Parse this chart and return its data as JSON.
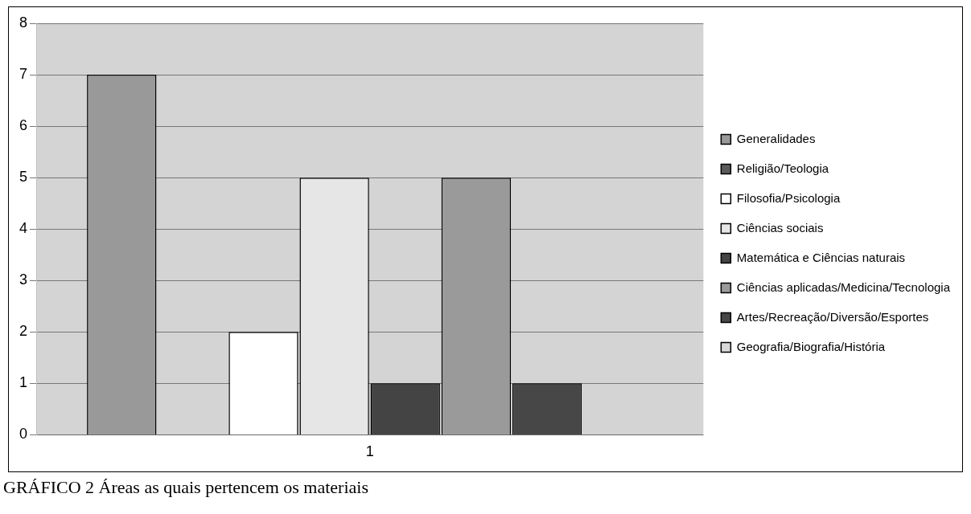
{
  "chart_data": {
    "type": "bar",
    "categories": [
      "1"
    ],
    "series": [
      {
        "name": "Generalidades",
        "color": "#999999",
        "values": [
          7
        ]
      },
      {
        "name": "Religião/Teologia",
        "color": "#5a5a5a",
        "values": [
          0
        ]
      },
      {
        "name": "Filosofia/Psicologia",
        "color": "#ffffff",
        "values": [
          2
        ]
      },
      {
        "name": "Ciências sociais",
        "color": "#e6e6e6",
        "values": [
          5
        ]
      },
      {
        "name": "Matemática e Ciências naturais",
        "color": "#444444",
        "values": [
          1
        ]
      },
      {
        "name": "Ciências aplicadas/Medicina/Tecnologia",
        "color": "#9a9a9a",
        "values": [
          5
        ]
      },
      {
        "name": "Artes/Recreação/Diversão/Esportes",
        "color": "#474747",
        "values": [
          1
        ]
      },
      {
        "name": "Geografia/Biografia/História",
        "color": "#d9d9d9",
        "values": [
          0
        ]
      }
    ],
    "ylim": [
      0,
      8
    ],
    "yticks": [
      0,
      1,
      2,
      3,
      4,
      5,
      6,
      7,
      8
    ],
    "grid": "y",
    "legend": "right",
    "annotations": [
      "GRÁFICO 2  Áreas as quais pertencem os materiais"
    ]
  }
}
